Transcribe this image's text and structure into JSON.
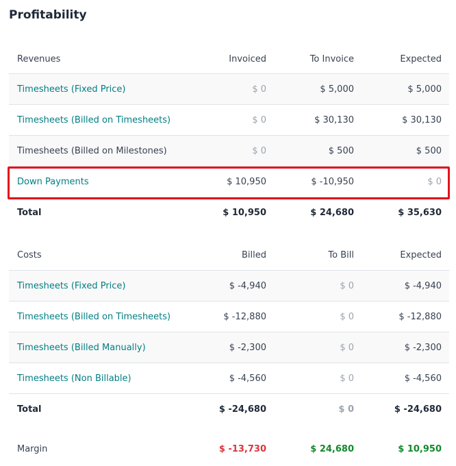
{
  "title": "Profitability",
  "revenues": {
    "header": {
      "label": "Revenues",
      "col1": "Invoiced",
      "col2": "To Invoice",
      "col3": "Expected"
    },
    "rows": [
      {
        "label": "Timesheets (Fixed Price)",
        "v1": "$ 0",
        "v2": "$ 5,000",
        "v3": "$ 5,000"
      },
      {
        "label": "Timesheets (Billed on Timesheets)",
        "v1": "$ 0",
        "v2": "$ 30,130",
        "v3": "$ 30,130"
      },
      {
        "label": "Timesheets (Billed on Milestones)",
        "v1": "$ 0",
        "v2": "$ 500",
        "v3": "$ 500"
      },
      {
        "label": "Down Payments",
        "v1": "$ 10,950",
        "v2": "$ -10,950",
        "v3": "$ 0"
      }
    ],
    "total": {
      "label": "Total",
      "v1": "$ 10,950",
      "v2": "$ 24,680",
      "v3": "$ 35,630"
    }
  },
  "costs": {
    "header": {
      "label": "Costs",
      "col1": "Billed",
      "col2": "To Bill",
      "col3": "Expected"
    },
    "rows": [
      {
        "label": "Timesheets (Fixed Price)",
        "v1": "$ -4,940",
        "v2": "$ 0",
        "v3": "$ -4,940"
      },
      {
        "label": "Timesheets (Billed on Timesheets)",
        "v1": "$ -12,880",
        "v2": "$ 0",
        "v3": "$ -12,880"
      },
      {
        "label": "Timesheets (Billed Manually)",
        "v1": "$ -2,300",
        "v2": "$ 0",
        "v3": "$ -2,300"
      },
      {
        "label": "Timesheets (Non Billable)",
        "v1": "$ -4,560",
        "v2": "$ 0",
        "v3": "$ -4,560"
      }
    ],
    "total": {
      "label": "Total",
      "v1": "$ -24,680",
      "v2": "$ 0",
      "v3": "$ -24,680"
    }
  },
  "margin": {
    "label": "Margin",
    "v1": "$ -13,730",
    "v2": "$ 24,680",
    "v3": "$ 10,950"
  },
  "colors": {
    "link": "#017e84",
    "negative": "#d9363e",
    "positive": "#14892c",
    "highlight": "#e3131b"
  }
}
